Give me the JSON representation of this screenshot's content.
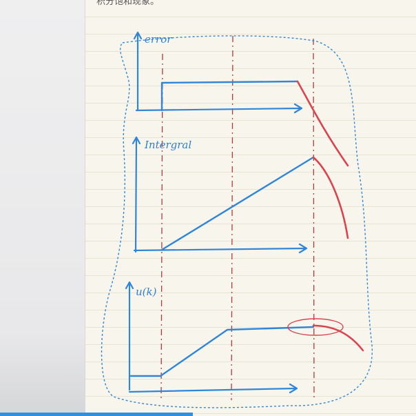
{
  "header": {
    "note": "积分饱和现象。"
  },
  "labels": {
    "error": "error",
    "integral": "Intergral",
    "output": "u(k)"
  }
}
